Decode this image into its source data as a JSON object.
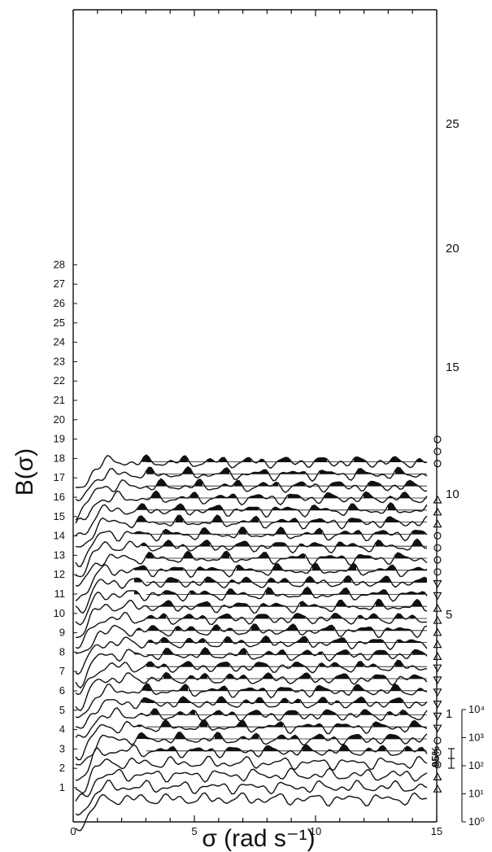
{
  "chart_data": {
    "type": "line",
    "title": "",
    "xlabel": "σ (rad s⁻¹)",
    "ylabel": "B(σ)",
    "xlim": [
      0,
      15
    ],
    "x_ticks": [
      "0",
      "5",
      "10",
      "15"
    ],
    "y_ticks": [
      "1",
      "2",
      "3",
      "4",
      "5",
      "6",
      "7",
      "8",
      "9",
      "10",
      "11",
      "12",
      "13",
      "14",
      "15",
      "16",
      "17",
      "18",
      "19",
      "20",
      "21",
      "22",
      "23",
      "24",
      "25",
      "26",
      "27",
      "28"
    ],
    "trace_count": 29,
    "trace_markers": [
      "1",
      "5",
      "10",
      "15",
      "20",
      "25"
    ],
    "significance_label": "95%",
    "inset_scale_ticks": [
      "10⁰",
      "10¹",
      "10²",
      "10³",
      "10⁴"
    ],
    "filled_regions": "above 95% significance",
    "symbol_groups": [
      {
        "symbol": "triangle-up",
        "traces": [
          2,
          3
        ]
      },
      {
        "symbol": "circle",
        "traces": [
          4,
          5,
          6
        ]
      },
      {
        "symbol": "triangle-down",
        "traces": [
          7,
          8,
          9
        ]
      },
      {
        "symbol": "triangle-down",
        "traces": [
          10,
          11,
          12
        ]
      },
      {
        "symbol": "triangle-up",
        "traces": [
          13,
          14,
          15
        ]
      },
      {
        "symbol": "triangle-up",
        "traces": [
          16,
          17
        ]
      },
      {
        "symbol": "triangle-down",
        "traces": [
          18,
          19
        ]
      },
      {
        "symbol": "circle",
        "traces": [
          20,
          21,
          22,
          23
        ]
      },
      {
        "symbol": "triangle-up",
        "traces": [
          24,
          25,
          26
        ]
      },
      {
        "symbol": "circle",
        "traces": [
          29,
          30,
          31
        ]
      }
    ]
  }
}
